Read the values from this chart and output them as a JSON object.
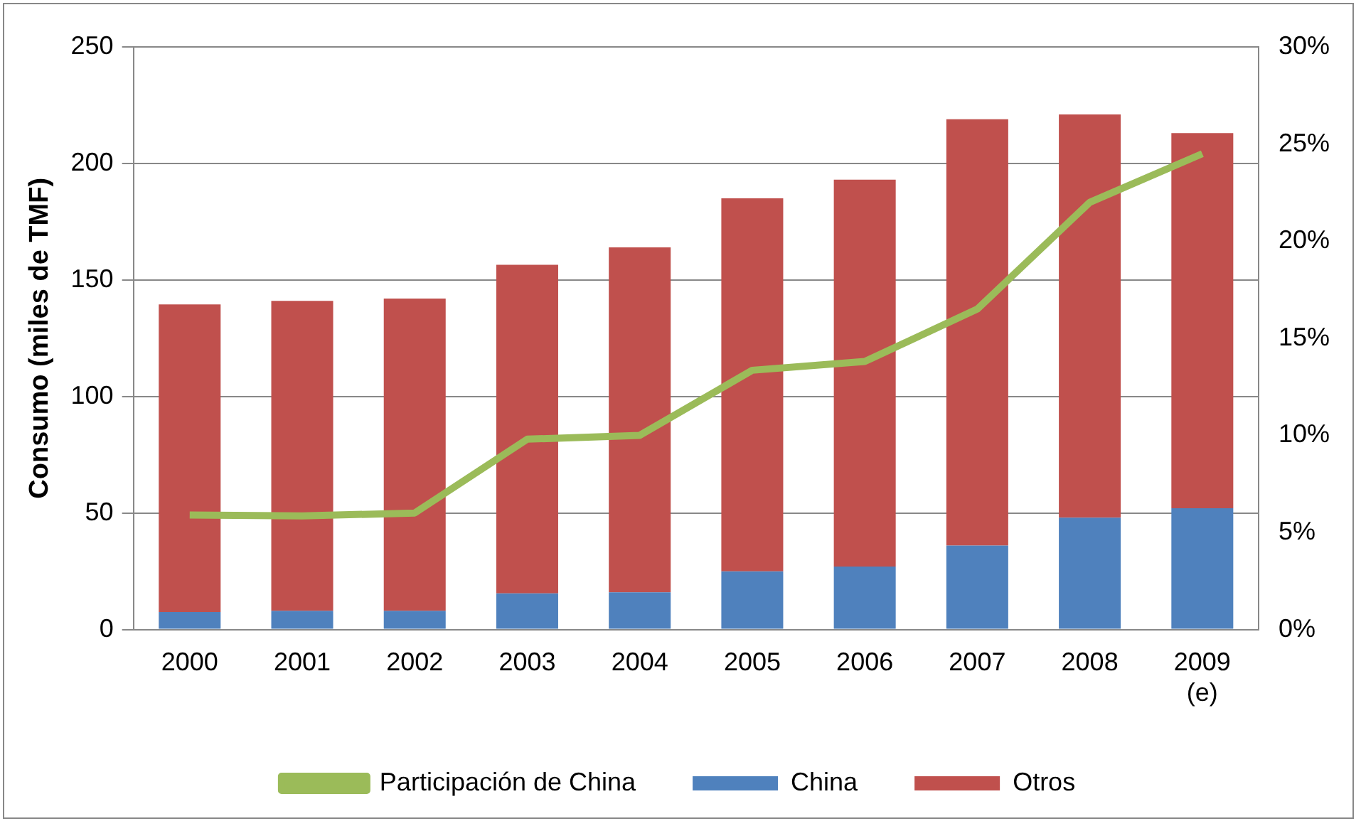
{
  "chart_data": {
    "type": "bar",
    "stacked": true,
    "ylabel": "Consumo (miles de TMF)",
    "categories": [
      "2000",
      "2001",
      "2002",
      "2003",
      "2004",
      "2005",
      "2006",
      "2007",
      "2008",
      "2009 (e)"
    ],
    "series": [
      {
        "name": "China",
        "color": "#4f81bd",
        "values": [
          7.5,
          8,
          8,
          15.5,
          16,
          25,
          27,
          36,
          48,
          52
        ]
      },
      {
        "name": "Otros",
        "color": "#c0504d",
        "values": [
          132,
          133,
          134,
          141,
          148,
          160,
          166,
          183,
          173,
          161
        ]
      },
      {
        "name": "Participación de China",
        "type": "line",
        "axis": "y2",
        "color": "#9bbb59",
        "marker": "none",
        "values": [
          5.9,
          5.85,
          6,
          9.8,
          10,
          13.35,
          13.8,
          16.5,
          22,
          24.5
        ]
      }
    ],
    "ylim": [
      0,
      250
    ],
    "yticks": [
      0,
      50,
      100,
      150,
      200,
      250
    ],
    "y2lim": [
      0,
      30
    ],
    "y2ticks": [
      {
        "value": 0,
        "label": "0%"
      },
      {
        "value": 5,
        "label": "5%"
      },
      {
        "value": 10,
        "label": "10%"
      },
      {
        "value": 15,
        "label": "15%"
      },
      {
        "value": 20,
        "label": "20%"
      },
      {
        "value": 25,
        "label": "25%"
      },
      {
        "value": 30,
        "label": "30%"
      }
    ],
    "grid": "y",
    "legend": "bottom"
  }
}
